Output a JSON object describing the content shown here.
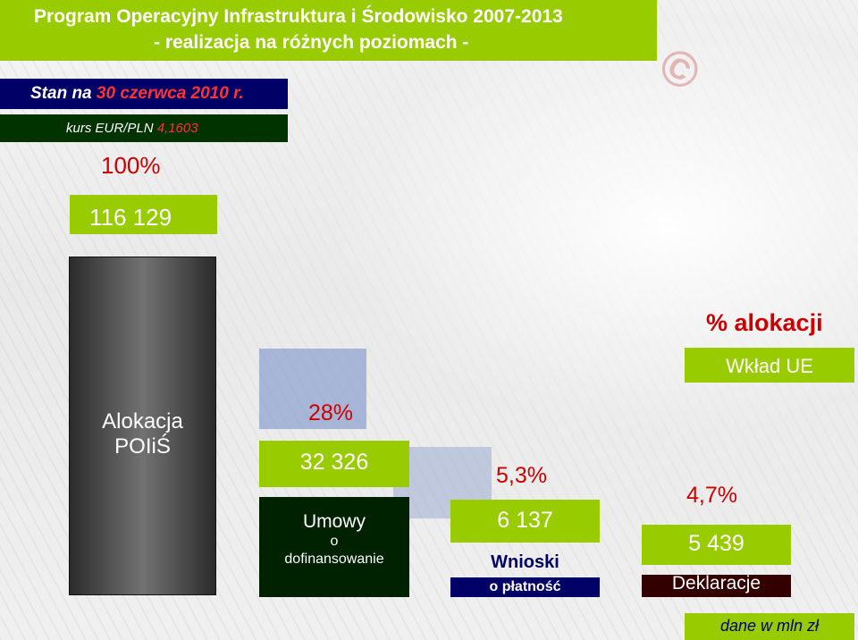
{
  "header": {
    "title_line1": "Program Operacyjny Infrastruktura i Środowisko 2007-2013",
    "title_line2": "- realizacja na różnych poziomach -"
  },
  "status": {
    "prefix": "Stan na ",
    "date": "30 czerwca 2010 r."
  },
  "exchange_rate": {
    "label": "kurs EUR/PLN ",
    "value": "4,1603"
  },
  "legend": {
    "heading": "% alokacji",
    "label": "Wkład UE"
  },
  "footnote": "dane w mln zł",
  "colors": {
    "accent_green": "#99cc00",
    "title_navy": "#000066",
    "dark_green": "#003300",
    "highlight_red": "#cc0000"
  },
  "chart_data": {
    "type": "bar",
    "title": "Program Operacyjny Infrastruktura i Środowisko 2007-2013 - realizacja na różnych poziomach -",
    "unit": "dane w mln zł",
    "categories": [
      "Alokacja POIiŚ",
      "Umowy o dofinansowanie",
      "Wnioski o płatność",
      "Deklaracje"
    ],
    "series": [
      {
        "name": "Wkład UE",
        "values": [
          116129,
          32326,
          6137,
          5439
        ]
      }
    ],
    "value_labels": [
      "116 129",
      "32 326",
      "6 137",
      "5 439"
    ],
    "percent_of_allocation": [
      "100%",
      "28%",
      "5,3%",
      "4,7%"
    ],
    "bars": [
      {
        "label_lines": [
          "Alokacja",
          "POIiŚ"
        ]
      },
      {
        "label_lines": [
          "Umowy",
          "o",
          "dofinansowanie"
        ]
      },
      {
        "label_lines": [
          "Wnioski",
          "o płatność"
        ]
      },
      {
        "label_lines": [
          "Deklaracje"
        ]
      }
    ]
  }
}
